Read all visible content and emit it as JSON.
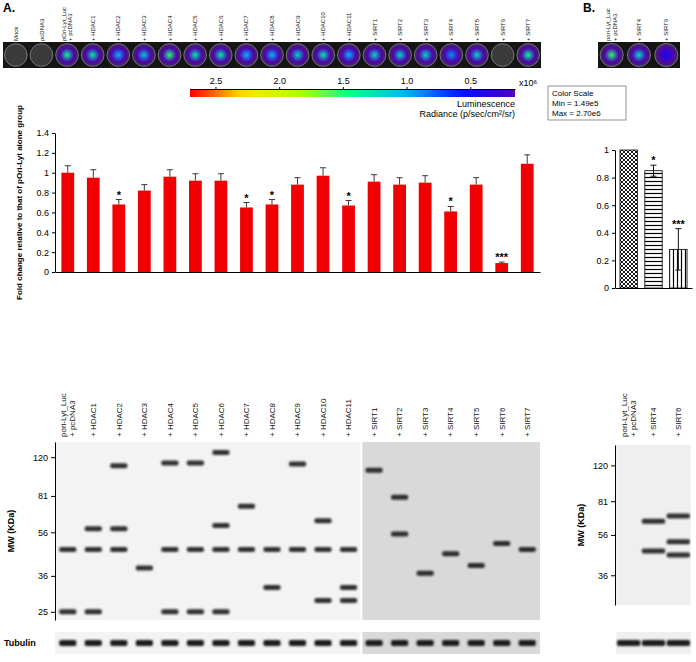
{
  "panels": [
    "A.",
    "B."
  ],
  "imaging": [
    {
      "labels": [
        "Mock",
        "pcDNA3",
        "pOri-Lyt_Luc\n+ pcDNA3",
        "+ HDAC1",
        "+ HDAC2",
        "+ HDAC3",
        "+ HDAC4",
        "+ HDAC5",
        "+ HDAC6",
        "+ HDAC7",
        "+ HDAC8",
        "+ HDAC9",
        "+ HDAC10",
        "+ HDAC11",
        "+ SIRT1",
        "+ SIRT2",
        "+ SIRT3",
        "+ SIRT4",
        "+ SIRT5",
        "+ SIRT6",
        "+ SIRT7"
      ],
      "radiance": [
        null,
        null,
        1.4,
        1.3,
        1.0,
        1.1,
        1.5,
        1.3,
        1.3,
        1.0,
        1.0,
        1.2,
        1.3,
        1.0,
        1.2,
        1.2,
        1.2,
        0.9,
        1.2,
        null,
        1.4
      ]
    },
    {
      "labels": [
        "pori-Lyt_Luc\n+ pcDNA3",
        "+ SIRT4",
        "+ SIRT6"
      ],
      "radiance": [
        1.5,
        1.2,
        0.5
      ]
    }
  ],
  "color_bar": {
    "label": "Luminescence",
    "unit": "Radiance (p/sec/cm²/sr)",
    "multiplier": "x10⁶",
    "range": [
      2.7,
      0.149
    ],
    "ticks": [
      2.5,
      {
        "value": 2,
        "label": "2.0"
      },
      1.5,
      {
        "value": 1,
        "label": "1.0"
      },
      0.5
    ],
    "box": {
      "title": "Color Scale",
      "min": "Min = 1.49e5",
      "max": "Max = 2.70e6"
    }
  },
  "chart_data": [
    {
      "type": "bar",
      "y_label": "Fold change relative to that of pOri-Lyt alone group",
      "categories": [
        "pori-Lyt_Luc\n+ pcDNA3",
        "+ HDAC1",
        "+ HDAC2",
        "+ HDAC3",
        "+ HDAC4",
        "+ HDAC5",
        "+ HDAC6",
        "+ HDAC7",
        "+ HDAC8",
        "+ HDAC9",
        "+ HDAC10",
        "+ HDAC11",
        "+ SIRT1",
        "+ SIRT2",
        "+ SIRT3",
        "+ SIRT4",
        "+ SIRT5",
        "+ SIRT6",
        "+ SIRT7"
      ],
      "values": [
        1.0,
        0.95,
        0.68,
        0.82,
        0.96,
        0.92,
        0.92,
        0.65,
        0.68,
        0.88,
        0.97,
        0.67,
        0.91,
        0.88,
        0.9,
        0.61,
        0.88,
        0.09,
        1.09
      ],
      "errors_plus": [
        0.07,
        0.08,
        0.05,
        0.06,
        0.07,
        0.07,
        0.07,
        0.05,
        0.05,
        0.07,
        0.08,
        0.05,
        0.07,
        0.07,
        0.07,
        0.05,
        0.07,
        0.01,
        0.09
      ],
      "annotations": [
        null,
        null,
        "*",
        null,
        null,
        null,
        null,
        "*",
        "*",
        null,
        null,
        "*",
        null,
        null,
        null,
        "*",
        null,
        "***",
        null
      ],
      "color": "#f00000",
      "ylim": [
        0,
        1.4
      ],
      "yticks": [
        0,
        0.2,
        0.4,
        0.6,
        0.8,
        1,
        1.2,
        1.4
      ],
      "grid": false
    },
    {
      "type": "bar",
      "categories": [
        "pori-Lyt_Luc\n+ pcDNA3",
        "+ SIRT4",
        "+ SIRT6"
      ],
      "values": [
        1,
        0.85,
        0.28
      ],
      "errors": [
        null,
        0.04,
        0.15
      ],
      "annotations": [
        null,
        "*",
        "***"
      ],
      "color": "#000000",
      "ylim": [
        0,
        1
      ],
      "yticks": [
        0,
        0.2,
        0.4,
        0.6,
        0.8,
        1
      ],
      "grid": false
    }
  ],
  "blots": [
    {
      "y_label": "MW (KDa)",
      "log": true,
      "ylim": [
        140,
        23
      ],
      "yticks": [
        120,
        81,
        56,
        36,
        25
      ],
      "bands": [
        [
          47,
          25
        ],
        [
          58,
          47,
          25
        ],
        [
          110,
          58,
          47
        ],
        [
          39
        ],
        [
          113,
          47,
          25
        ],
        [
          113,
          47,
          25
        ],
        [
          126,
          60,
          47,
          25
        ],
        [
          73,
          47
        ],
        [
          32,
          47
        ],
        [
          112,
          47
        ],
        [
          63,
          47,
          28
        ],
        [
          32,
          47,
          28
        ],
        [
          105
        ],
        [
          80,
          55
        ],
        [
          37
        ],
        [
          45
        ],
        [
          40
        ],
        [
          50
        ],
        [
          47
        ]
      ],
      "loading_control": "Tubulin"
    },
    {
      "y_label": "MW (KDa)",
      "log": true,
      "ylim": [
        150,
        26
      ],
      "yticks": [
        120,
        81,
        56,
        36
      ],
      "bands": [
        [],
        [
          47,
          65
        ],
        [
          52,
          69,
          45
        ]
      ]
    }
  ]
}
